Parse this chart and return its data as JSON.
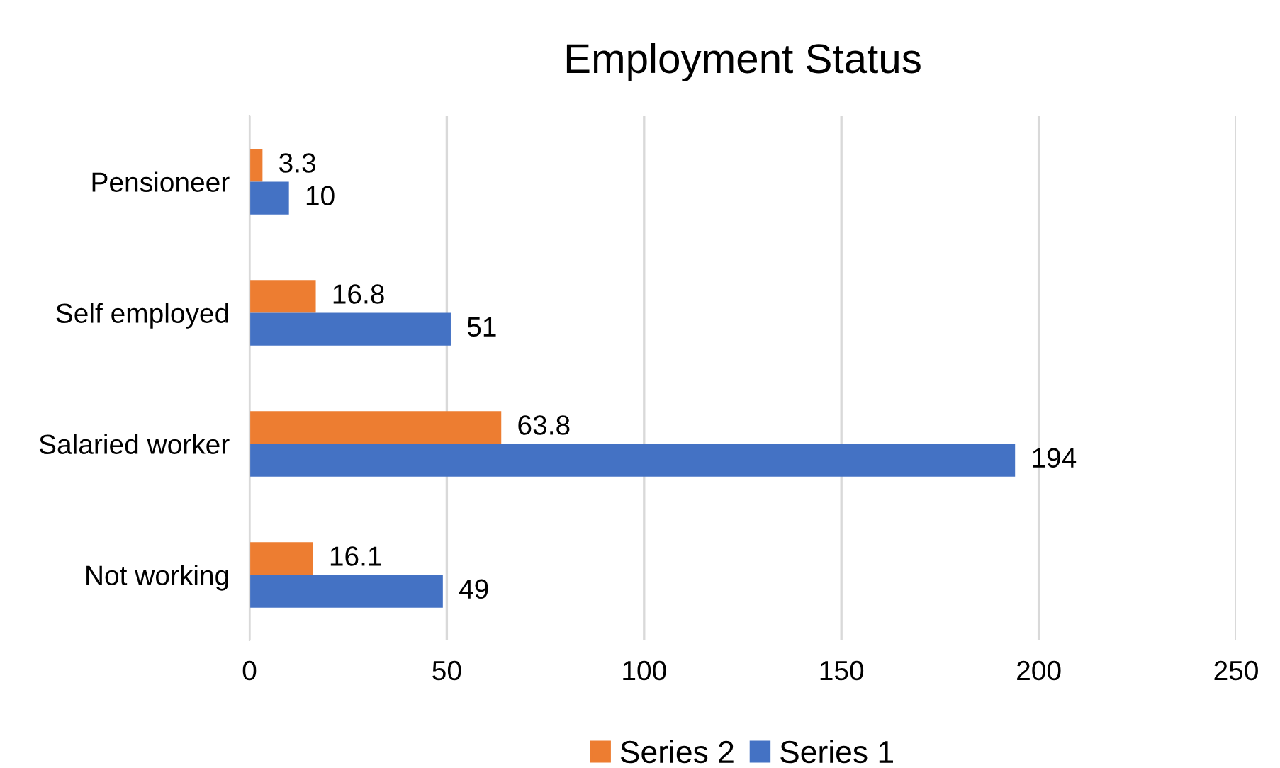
{
  "chart_data": {
    "type": "bar",
    "orientation": "horizontal",
    "title": "Employment Status",
    "categories": [
      "Pensioneer",
      "Self employed",
      "Salaried worker",
      "Not working"
    ],
    "series": [
      {
        "name": "Series 2",
        "color": "#ed7d31",
        "values": [
          3.3,
          16.8,
          63.8,
          16.1
        ]
      },
      {
        "name": "Series 1",
        "color": "#4472c4",
        "values": [
          10,
          51,
          194,
          49
        ]
      }
    ],
    "xlim": [
      0,
      250
    ],
    "xticks": [
      0,
      50,
      100,
      150,
      200,
      250
    ],
    "grid": "x",
    "legend": "bottom",
    "data_labels": true
  }
}
